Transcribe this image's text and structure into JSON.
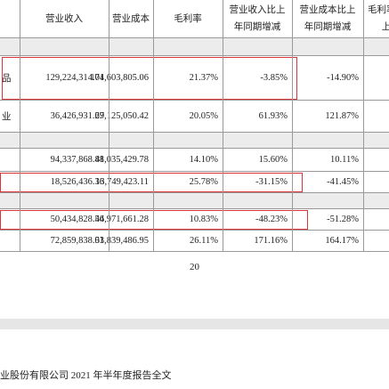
{
  "table": {
    "header": [
      "营业收入",
      "营业成本",
      "毛利率",
      "营业收入比上年同期增减",
      "营业成本比上年同期增减",
      "毛利率比上"
    ],
    "rows": [
      {
        "section": true
      },
      {
        "label": "品",
        "cells": [
          "129,224,314.74",
          "101,603,805.06",
          "21.37%",
          "-3.85%",
          "-14.90%"
        ],
        "highlight": true
      },
      {
        "label": "业",
        "cells": [
          "36,426,931.67",
          "29,125,050.42",
          "20.05%",
          "61.93%",
          "121.87%"
        ]
      },
      {
        "section": true
      },
      {
        "cells": [
          "94,337,868.48",
          "81,035,429.78",
          "14.10%",
          "15.60%",
          "10.11%"
        ]
      },
      {
        "cells": [
          "18,526,436.36",
          "13,749,423.11",
          "25.78%",
          "-31.15%",
          "-41.45%"
        ],
        "highlight": true
      },
      {
        "section": true
      },
      {
        "cells": [
          "50,434,828.56",
          "44,971,661.28",
          "10.83%",
          "-48.23%",
          "-51.28%"
        ],
        "highlight": true
      },
      {
        "cells": [
          "72,859,838.01",
          "53,839,486.95",
          "26.11%",
          "171.16%",
          "164.17%"
        ]
      }
    ]
  },
  "page_number": "20",
  "footer": "业股份有限公司 2021 年半年度报告全文"
}
